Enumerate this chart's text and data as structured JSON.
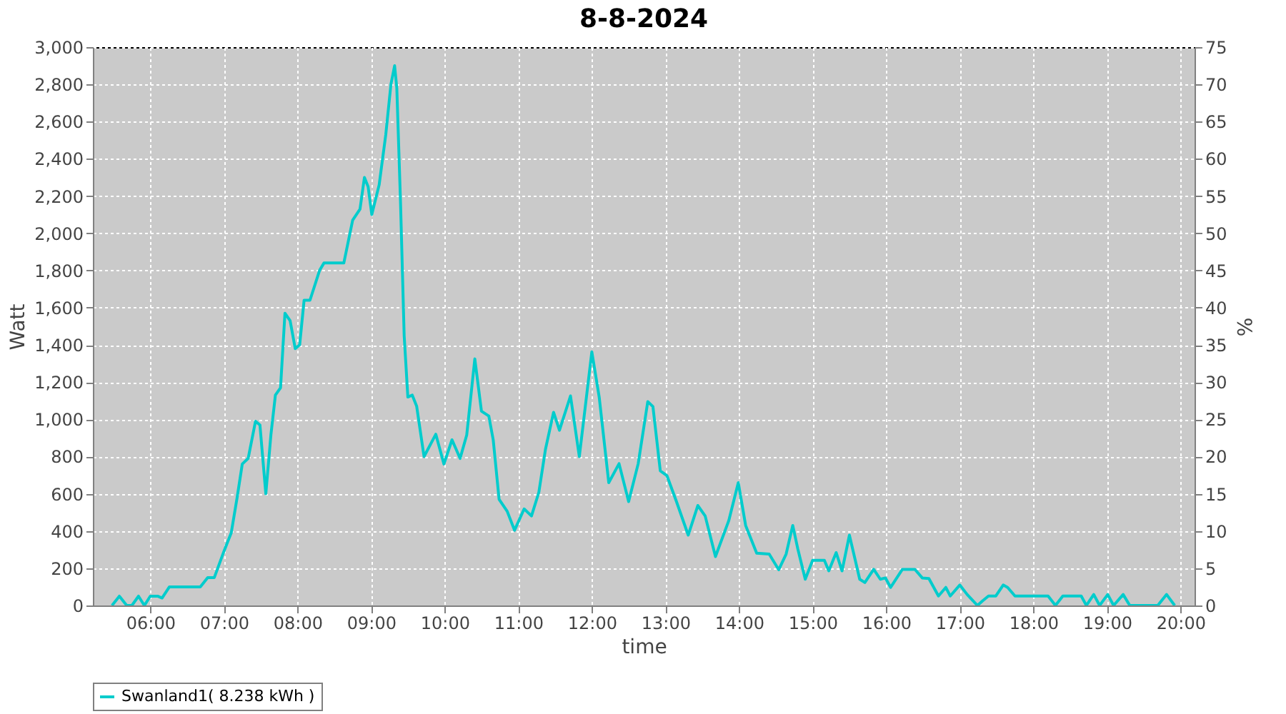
{
  "chart_data": {
    "type": "line",
    "title": "8-8-2024",
    "xlabel": "time",
    "ylabel": "Watt",
    "y2label": "%",
    "xlim": [
      5.22,
      20.19
    ],
    "xticks": [
      {
        "value": 6,
        "label": "06:00"
      },
      {
        "value": 7,
        "label": "07:00"
      },
      {
        "value": 8,
        "label": "08:00"
      },
      {
        "value": 9,
        "label": "09:00"
      },
      {
        "value": 10,
        "label": "10:00"
      },
      {
        "value": 11,
        "label": "11:00"
      },
      {
        "value": 12,
        "label": "12:00"
      },
      {
        "value": 13,
        "label": "13:00"
      },
      {
        "value": 14,
        "label": "14:00"
      },
      {
        "value": 15,
        "label": "15:00"
      },
      {
        "value": 16,
        "label": "16:00"
      },
      {
        "value": 17,
        "label": "17:00"
      },
      {
        "value": 18,
        "label": "18:00"
      },
      {
        "value": 19,
        "label": "19:00"
      },
      {
        "value": 20,
        "label": "20:00"
      }
    ],
    "ylim": [
      0,
      3000
    ],
    "yticks": [
      0,
      200,
      400,
      600,
      800,
      {
        "value": 1000,
        "label": "1,000"
      },
      {
        "value": 1200,
        "label": "1,200"
      },
      {
        "value": 1400,
        "label": "1,400"
      },
      {
        "value": 1600,
        "label": "1,600"
      },
      {
        "value": 1800,
        "label": "1,800"
      },
      {
        "value": 2000,
        "label": "2,000"
      },
      {
        "value": 2200,
        "label": "2,200"
      },
      {
        "value": 2400,
        "label": "2,400"
      },
      {
        "value": 2600,
        "label": "2,600"
      },
      {
        "value": 2800,
        "label": "2,800"
      },
      {
        "value": 3000,
        "label": "3,000"
      }
    ],
    "y2lim": [
      0,
      75
    ],
    "y2ticks": [
      0,
      5,
      10,
      15,
      20,
      25,
      30,
      35,
      40,
      45,
      50,
      55,
      60,
      65,
      70,
      75
    ],
    "grid": true,
    "legend": "bottom",
    "series": [
      {
        "name": "Swanland1( 8.238 kWh )",
        "color": "#00cccc",
        "x": [
          5.48,
          5.58,
          5.68,
          5.75,
          5.84,
          5.92,
          6.0,
          6.1,
          6.16,
          6.26,
          6.68,
          6.78,
          6.87,
          7.0,
          7.1,
          7.18,
          7.25,
          7.33,
          7.43,
          7.49,
          7.57,
          7.64,
          7.7,
          7.77,
          7.83,
          7.9,
          7.97,
          8.03,
          8.09,
          8.17,
          8.3,
          8.36,
          8.63,
          8.75,
          8.85,
          8.91,
          8.96,
          9.01,
          9.11,
          9.2,
          9.27,
          9.32,
          9.35,
          9.4,
          9.45,
          9.5,
          9.56,
          9.62,
          9.72,
          9.88,
          9.99,
          10.1,
          10.21,
          10.3,
          10.41,
          10.5,
          10.6,
          10.66,
          10.74,
          10.85,
          10.95,
          11.08,
          11.18,
          11.28,
          11.37,
          11.48,
          11.56,
          11.71,
          11.83,
          12.0,
          12.1,
          12.23,
          12.37,
          12.5,
          12.63,
          12.76,
          12.83,
          12.93,
          13.02,
          13.15,
          13.31,
          13.44,
          13.54,
          13.68,
          13.86,
          13.99,
          14.09,
          14.24,
          14.41,
          14.54,
          14.64,
          14.73,
          14.8,
          14.9,
          15.0,
          15.16,
          15.22,
          15.32,
          15.4,
          15.5,
          15.64,
          15.71,
          15.83,
          15.92,
          15.99,
          16.06,
          16.22,
          16.39,
          16.49,
          16.58,
          16.71,
          16.81,
          16.87,
          17.0,
          17.1,
          17.24,
          17.31,
          17.39,
          17.49,
          17.59,
          17.65,
          17.75,
          18.2,
          18.3,
          18.4,
          18.65,
          18.72,
          18.82,
          18.9,
          19.01,
          19.09,
          19.22,
          19.31,
          19.69,
          19.81,
          19.92
        ],
        "values": [
          0,
          50,
          0,
          0,
          50,
          0,
          50,
          50,
          40,
          100,
          100,
          150,
          150,
          290,
          390,
          580,
          760,
          790,
          990,
          970,
          600,
          920,
          1130,
          1170,
          1570,
          1530,
          1380,
          1400,
          1640,
          1640,
          1800,
          1840,
          1840,
          2070,
          2130,
          2300,
          2250,
          2100,
          2260,
          2530,
          2800,
          2900,
          2780,
          2170,
          1450,
          1120,
          1130,
          1070,
          800,
          920,
          760,
          890,
          790,
          916,
          1325,
          1044,
          1018,
          890,
          570,
          506,
          404,
          519,
          481,
          608,
          839,
          1038,
          941,
          1126,
          800,
          1363,
          1120,
          660,
          762,
          558,
          762,
          1095,
          1069,
          724,
          698,
          558,
          378,
          537,
          481,
          263,
          455,
          660,
          430,
          281,
          276,
          192,
          276,
          430,
          302,
          141,
          243,
          243,
          186,
          284,
          186,
          378,
          141,
          123,
          194,
          141,
          148,
          97,
          194,
          194,
          148,
          145,
          51,
          97,
          51,
          110,
          59,
          0,
          25,
          51,
          51,
          110,
          97,
          51,
          51,
          0,
          51,
          51,
          0,
          59,
          0,
          59,
          0,
          59,
          0,
          0,
          59,
          0
        ]
      }
    ]
  }
}
